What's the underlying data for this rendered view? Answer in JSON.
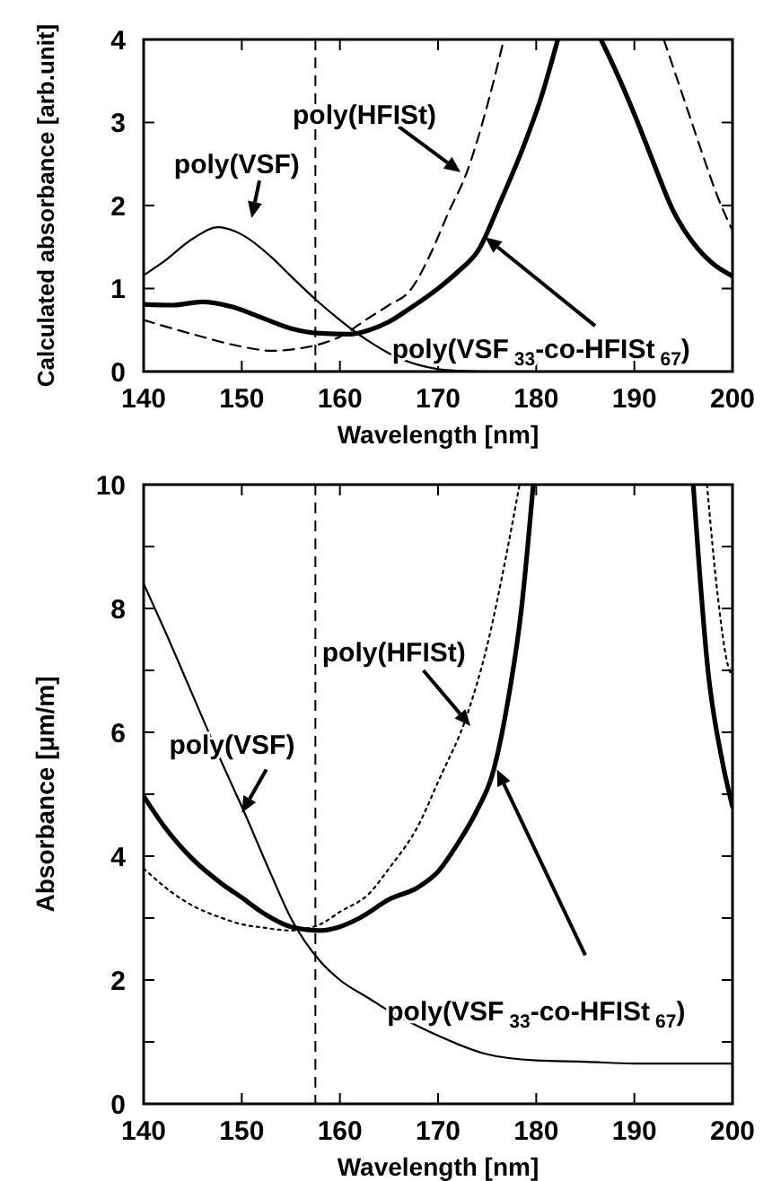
{
  "chart_data": [
    {
      "type": "line",
      "xlabel": "Wavelength [nm]",
      "ylabel": "Calculated absorbance [arb.unit]",
      "xlim": [
        140,
        200
      ],
      "ylim": [
        0,
        4
      ],
      "xticks": [
        140,
        150,
        160,
        170,
        180,
        190,
        200
      ],
      "yticks": [
        0,
        1,
        2,
        3,
        4
      ],
      "grid": false,
      "series": [
        {
          "color": "#000000",
          "line_style": "solid",
          "x": [
            140,
            142,
            145,
            147.6,
            150,
            153,
            155,
            157.6,
            160,
            161.3,
            163,
            165,
            168,
            170,
            172,
            175
          ],
          "values": [
            1.16,
            1.32,
            1.6,
            1.74,
            1.65,
            1.38,
            1.15,
            0.86,
            0.62,
            0.5,
            0.36,
            0.22,
            0.08,
            0.03,
            0.01,
            0
          ]
        },
        {
          "color": "#000000",
          "line_style": "solid",
          "x": [
            140,
            143,
            146,
            149,
            152,
            155,
            158,
            161,
            163,
            165,
            167,
            170,
            172,
            174.1,
            176.4,
            178.7,
            180.5,
            182.2,
            184,
            186.6,
            188,
            190,
            192,
            193.9,
            196,
            198,
            200
          ],
          "values": [
            0.81,
            0.8,
            0.84,
            0.78,
            0.65,
            0.52,
            0.46,
            0.45,
            0.5,
            0.6,
            0.75,
            1.0,
            1.2,
            1.46,
            2.06,
            2.71,
            3.3,
            4,
            null,
            4,
            3.65,
            3.1,
            2.5,
            1.95,
            1.55,
            1.3,
            1.15
          ]
        },
        {
          "color": "#000000",
          "line_style": "dashed",
          "x": [
            140,
            145,
            150,
            153,
            156,
            160,
            163,
            165,
            167.1,
            169.4,
            171,
            172.9,
            175,
            176.7,
            185,
            193,
            195,
            197,
            198.5,
            200
          ],
          "values": [
            0.62,
            0.45,
            0.3,
            0.25,
            0.28,
            0.42,
            0.65,
            0.8,
            0.97,
            1.46,
            1.9,
            2.39,
            3.2,
            4,
            null,
            4,
            3.3,
            2.6,
            2.1,
            1.7
          ]
        }
      ],
      "ref_lines": [
        {
          "axis": "x",
          "value": 157.5,
          "line_style": "dashed",
          "color": "#000000"
        }
      ],
      "annotations": [
        "poly(HFISt)",
        "poly(VSF)",
        "poly(VSF$_{33}$-co-HFISt$_{67}$)"
      ]
    },
    {
      "type": "line",
      "xlabel": "Wavelength [nm]",
      "ylabel": "Absorbance [μm/m]",
      "xlim": [
        140,
        200
      ],
      "ylim": [
        0,
        10
      ],
      "xticks": [
        140,
        150,
        160,
        170,
        180,
        190,
        200
      ],
      "yticks": [
        0,
        {
          "value": 1,
          "label": null
        },
        2,
        {
          "value": 3,
          "label": null
        },
        4,
        {
          "value": 5,
          "label": null
        },
        6,
        {
          "value": 7,
          "label": null
        },
        8,
        {
          "value": 9,
          "label": null
        },
        10
      ],
      "grid": false,
      "series": [
        {
          "color": "#000000",
          "line_style": "solid",
          "x": [
            140,
            142,
            145,
            148,
            150,
            153,
            155,
            158,
            160,
            163,
            165,
            168,
            170,
            175,
            180,
            185,
            190,
            195,
            200
          ],
          "values": [
            8.4,
            7.7,
            6.6,
            5.5,
            4.8,
            3.7,
            3.0,
            2.3,
            2.0,
            1.7,
            1.5,
            1.25,
            1.1,
            0.8,
            0.7,
            0.68,
            0.65,
            0.65,
            0.65
          ]
        },
        {
          "color": "#000000",
          "line_style": "solid",
          "x": [
            140,
            142,
            145,
            148,
            150,
            152,
            155,
            158,
            160,
            162,
            165,
            168,
            170,
            172,
            174,
            175.5,
            177,
            178.5,
            179.7,
            188,
            196,
            197.5,
            199,
            200
          ],
          "values": [
            4.97,
            4.5,
            3.95,
            3.55,
            3.33,
            3.1,
            2.86,
            2.8,
            2.86,
            3.0,
            3.3,
            3.5,
            3.75,
            4.2,
            4.75,
            5.3,
            6.4,
            8.0,
            10,
            null,
            10,
            7,
            5.5,
            4.8
          ]
        },
        {
          "color": "#000000",
          "line_style": "dotted",
          "x": [
            140,
            143,
            145,
            148,
            150,
            152,
            155,
            158,
            160,
            163,
            165,
            168,
            170,
            173,
            175,
            177,
            178.3,
            188,
            197.4,
            198.5,
            199.5,
            200
          ],
          "values": [
            3.8,
            3.4,
            3.2,
            3.0,
            2.9,
            2.85,
            2.8,
            2.9,
            3.1,
            3.4,
            3.8,
            4.5,
            5.2,
            6.3,
            7.4,
            8.9,
            10,
            null,
            10,
            8.2,
            7.1,
            6.9
          ]
        }
      ],
      "ref_lines": [
        {
          "axis": "x",
          "value": 157.5,
          "line_style": "dashed",
          "color": "#000000"
        }
      ],
      "annotations": [
        "poly(HFISt)",
        "poly(VSF)",
        "poly(VSF$_{33}$-co-HFISt$_{67}$)"
      ]
    }
  ]
}
